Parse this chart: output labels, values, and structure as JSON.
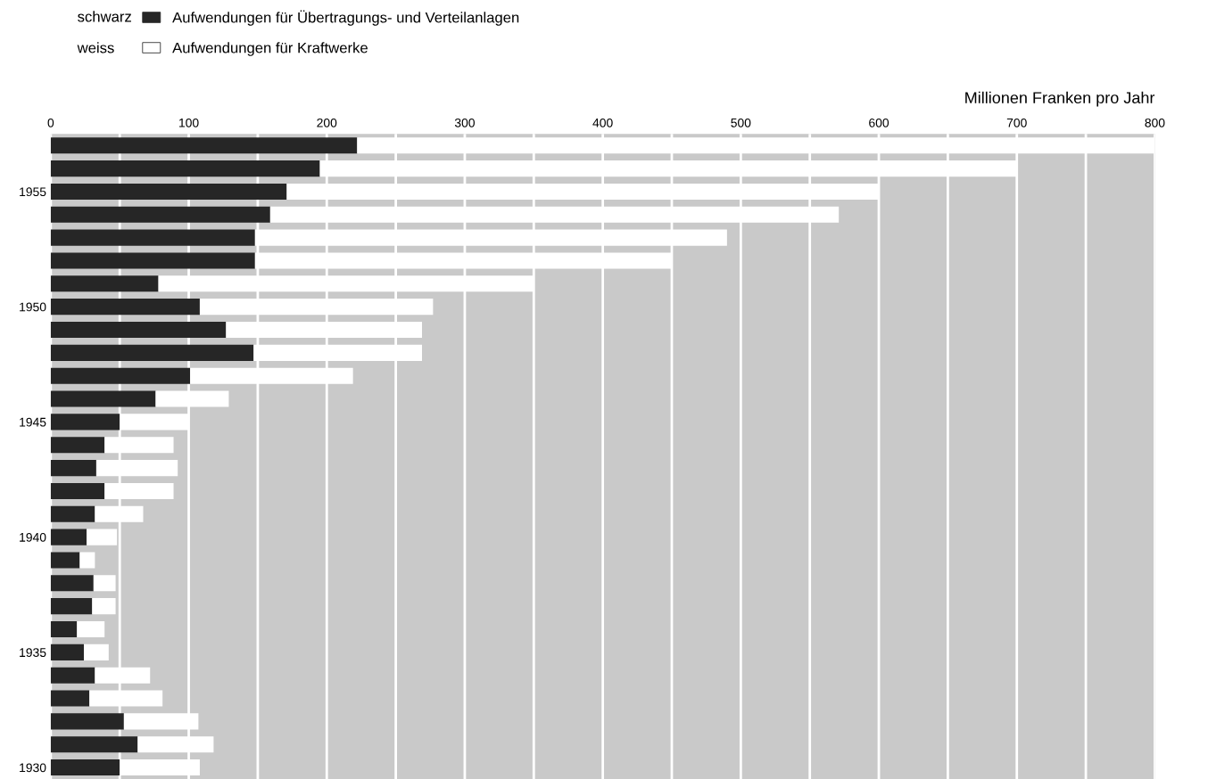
{
  "chart_data": {
    "type": "bar",
    "orientation": "horizontal",
    "stacked": true,
    "categories": [
      null,
      null,
      "1955",
      null,
      null,
      null,
      null,
      "1950",
      null,
      null,
      null,
      null,
      "1945",
      null,
      null,
      null,
      null,
      "1940",
      null,
      null,
      null,
      null,
      "1935",
      null,
      null,
      null,
      null,
      "1930"
    ],
    "series": [
      {
        "name": "Aufwendungen für Übertragungs- und Verteilanlagen",
        "color": "#262626",
        "values": [
          222,
          195,
          171,
          159,
          148,
          148,
          78,
          108,
          127,
          147,
          101,
          76,
          50,
          39,
          33,
          39,
          32,
          26,
          21,
          31,
          30,
          19,
          24,
          32,
          28,
          53,
          63,
          50
        ]
      },
      {
        "name": "Aufwendungen für Kraftwerke",
        "color": "#ffffff",
        "values": [
          578,
          505,
          429,
          412,
          342,
          302,
          272,
          169,
          142,
          122,
          118,
          53,
          50,
          50,
          59,
          50,
          35,
          22,
          11,
          16,
          17,
          20,
          18,
          40,
          53,
          54,
          55,
          58
        ]
      }
    ],
    "annotations": [
      "schwarz",
      "weiss"
    ],
    "xlabel": "Millionen Franken pro Jahr",
    "xlim": [
      0,
      800
    ],
    "xticks": [
      0,
      {
        "value": 50,
        "label": null
      },
      100,
      {
        "value": 150,
        "label": null
      },
      200,
      {
        "value": 250,
        "label": null
      },
      300,
      {
        "value": 350,
        "label": null
      },
      400,
      {
        "value": 450,
        "label": null
      },
      500,
      {
        "value": 550,
        "label": null
      },
      600,
      {
        "value": 650,
        "label": null
      },
      700,
      {
        "value": 750,
        "label": null
      },
      800
    ],
    "grid": "x",
    "legend": "top left"
  }
}
